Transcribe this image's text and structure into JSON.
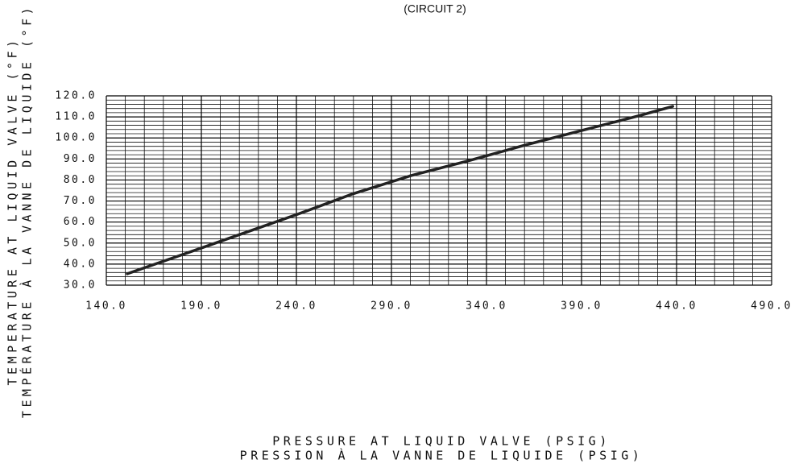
{
  "chart_data": {
    "type": "line",
    "title": "(CIRCUIT 2)",
    "y_label": [
      "TEMPERATURE AT LIQUID VALVE (°F)",
      "TEMPÉRATURE À LA VANNE DE LIQUIDE (°F)"
    ],
    "x_label": [
      "PRESSURE AT LIQUID VALVE (PSIG)",
      "PRESSION À LA VANNE DE LIQUIDE (PSIG)"
    ],
    "x": [
      151,
      180,
      210,
      240,
      270,
      300,
      330,
      360,
      390,
      420,
      438
    ],
    "values": [
      35.4,
      44.5,
      54,
      63.5,
      73.5,
      82,
      89,
      96.5,
      103.5,
      110.5,
      115
    ],
    "color": "#222222",
    "xlim": [
      140,
      490
    ],
    "ylim": [
      30,
      120
    ],
    "xticks": [
      {
        "value": 140,
        "label": "140.0"
      },
      {
        "value": 190,
        "label": "190.0"
      },
      {
        "value": 240,
        "label": "240.0"
      },
      {
        "value": 290,
        "label": "290.0"
      },
      {
        "value": 340,
        "label": "340.0"
      },
      {
        "value": 390,
        "label": "390.0"
      },
      {
        "value": 440,
        "label": "440.0"
      },
      {
        "value": 490,
        "label": "490.0"
      }
    ],
    "yticks": [
      {
        "value": 30,
        "label": "30.0"
      },
      {
        "value": 40,
        "label": "40.0"
      },
      {
        "value": 50,
        "label": "50.0"
      },
      {
        "value": 60,
        "label": "60.0"
      },
      {
        "value": 70,
        "label": "70.0"
      },
      {
        "value": 80,
        "label": "80.0"
      },
      {
        "value": 90,
        "label": "90.0"
      },
      {
        "value": 100,
        "label": "100.0"
      },
      {
        "value": 110,
        "label": "110.0"
      },
      {
        "value": 120,
        "label": "120.0"
      }
    ],
    "grid": true,
    "minor_grid": {
      "x": 5,
      "y": 5
    }
  }
}
